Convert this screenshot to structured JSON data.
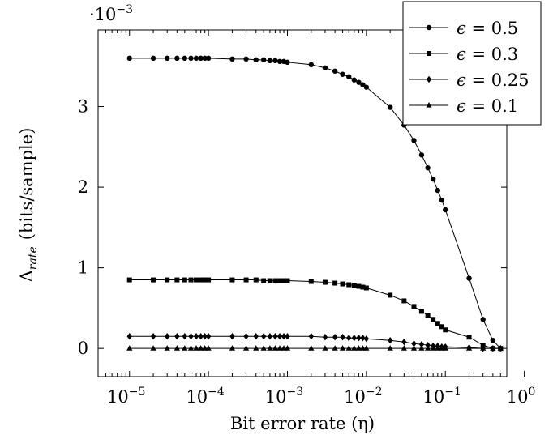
{
  "chart_data": {
    "type": "line",
    "xscale": "log",
    "xlim": [
      4e-06,
      0.6
    ],
    "ylim": [
      -0.00035,
      0.00395
    ],
    "xlabel": "Bit error rate (η)",
    "ylabel": "Δrate (bits/sample)",
    "ylabel_main": "Δ",
    "ylabel_sub": "rate",
    "ylabel_unit": "(bits/sample)",
    "y_multiplier_label": "·10",
    "y_multiplier_exponent": "−3",
    "xticks": [
      {
        "value": 1e-05,
        "base": "10",
        "exp": "−5"
      },
      {
        "value": 0.0001,
        "base": "10",
        "exp": "−4"
      },
      {
        "value": 0.001,
        "base": "10",
        "exp": "−3"
      },
      {
        "value": 0.01,
        "base": "10",
        "exp": "−2"
      },
      {
        "value": 0.1,
        "base": "10",
        "exp": "−1"
      },
      {
        "value": 1,
        "base": "10",
        "exp": "0"
      }
    ],
    "yticks": [
      {
        "value": 0,
        "label": "0"
      },
      {
        "value": 0.001,
        "label": "1"
      },
      {
        "value": 0.002,
        "label": "2"
      },
      {
        "value": 0.003,
        "label": "3"
      }
    ],
    "legend_position": "top-right",
    "grid": false,
    "x": [
      1e-05,
      2e-05,
      3e-05,
      4e-05,
      5e-05,
      6e-05,
      7e-05,
      8e-05,
      9e-05,
      0.0001,
      0.0002,
      0.0003,
      0.0004,
      0.0005,
      0.0006,
      0.0007,
      0.0008,
      0.0009,
      0.001,
      0.002,
      0.003,
      0.004,
      0.005,
      0.006,
      0.007,
      0.008,
      0.009,
      0.01,
      0.02,
      0.03,
      0.04,
      0.05,
      0.06,
      0.07,
      0.08,
      0.09,
      0.1,
      0.2,
      0.3,
      0.4,
      0.5
    ],
    "series": [
      {
        "name": "ϵ = 0.5",
        "legend_symbol": "ϵ",
        "legend_value": "= 0.5",
        "marker": "circle",
        "values": [
          0.0036,
          0.0036,
          0.0036,
          0.0036,
          0.0036,
          0.0036,
          0.0036,
          0.0036,
          0.0036,
          0.0036,
          0.00359,
          0.00359,
          0.00358,
          0.00358,
          0.00357,
          0.00357,
          0.00356,
          0.00356,
          0.00355,
          0.00352,
          0.00348,
          0.00344,
          0.0034,
          0.00337,
          0.00333,
          0.0033,
          0.00327,
          0.00324,
          0.00299,
          0.00277,
          0.00258,
          0.0024,
          0.00224,
          0.0021,
          0.00196,
          0.00184,
          0.00172,
          0.00087,
          0.00036,
          0.0001,
          0.0
        ]
      },
      {
        "name": "ϵ = 0.3",
        "legend_symbol": "ϵ",
        "legend_value": "= 0.3",
        "marker": "square",
        "values": [
          0.00085,
          0.00085,
          0.00085,
          0.00085,
          0.00085,
          0.00085,
          0.00085,
          0.00085,
          0.00085,
          0.00085,
          0.00085,
          0.00085,
          0.00085,
          0.00084,
          0.00084,
          0.00084,
          0.00084,
          0.00084,
          0.00084,
          0.00083,
          0.00082,
          0.00081,
          0.0008,
          0.00079,
          0.00078,
          0.00077,
          0.00076,
          0.00075,
          0.00066,
          0.00059,
          0.00052,
          0.00046,
          0.00041,
          0.00036,
          0.00031,
          0.00027,
          0.00023,
          0.00014,
          4e-05,
          0.0,
          0.0
        ]
      },
      {
        "name": "ϵ = 0.25",
        "legend_symbol": "ϵ",
        "legend_value": "= 0.25",
        "marker": "diamond",
        "values": [
          0.00015,
          0.00015,
          0.00015,
          0.00015,
          0.00015,
          0.00015,
          0.00015,
          0.00015,
          0.00015,
          0.00015,
          0.00015,
          0.00015,
          0.00015,
          0.00015,
          0.00015,
          0.00015,
          0.00015,
          0.00015,
          0.00015,
          0.00015,
          0.00014,
          0.00014,
          0.00014,
          0.00013,
          0.00013,
          0.00013,
          0.00013,
          0.00012,
          0.0001,
          8e-05,
          6e-05,
          5e-05,
          4e-05,
          3e-05,
          3e-05,
          2e-05,
          2e-05,
          1e-05,
          0.0,
          0.0,
          0.0
        ]
      },
      {
        "name": "ϵ = 0.1",
        "legend_symbol": "ϵ",
        "legend_value": "= 0.1",
        "marker": "triangle",
        "values": [
          0.0,
          0.0,
          0.0,
          0.0,
          0.0,
          0.0,
          0.0,
          0.0,
          0.0,
          0.0,
          0.0,
          0.0,
          0.0,
          0.0,
          0.0,
          0.0,
          0.0,
          0.0,
          0.0,
          0.0,
          0.0,
          0.0,
          0.0,
          0.0,
          0.0,
          0.0,
          0.0,
          0.0,
          0.0,
          0.0,
          0.0,
          0.0,
          0.0,
          0.0,
          0.0,
          0.0,
          0.0,
          0.0,
          0.0,
          0.0,
          0.0
        ]
      }
    ],
    "colors": {
      "line": "#000000",
      "marker": "#000000",
      "background": "#ffffff"
    }
  }
}
